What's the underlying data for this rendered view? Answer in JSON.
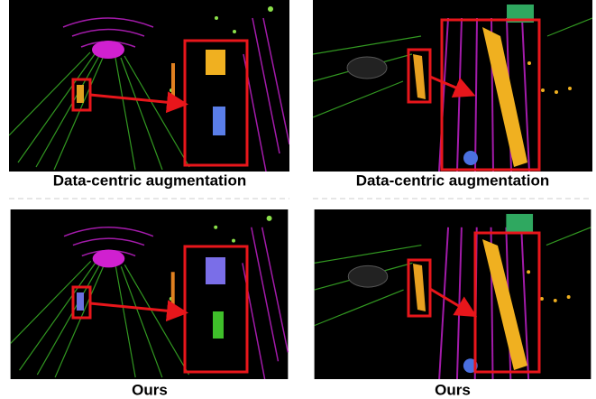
{
  "panels": [
    {
      "caption": "Data-centric augmentation"
    },
    {
      "caption": "Data-centric augmentation"
    },
    {
      "caption": "Ours"
    },
    {
      "caption": "Ours"
    }
  ]
}
